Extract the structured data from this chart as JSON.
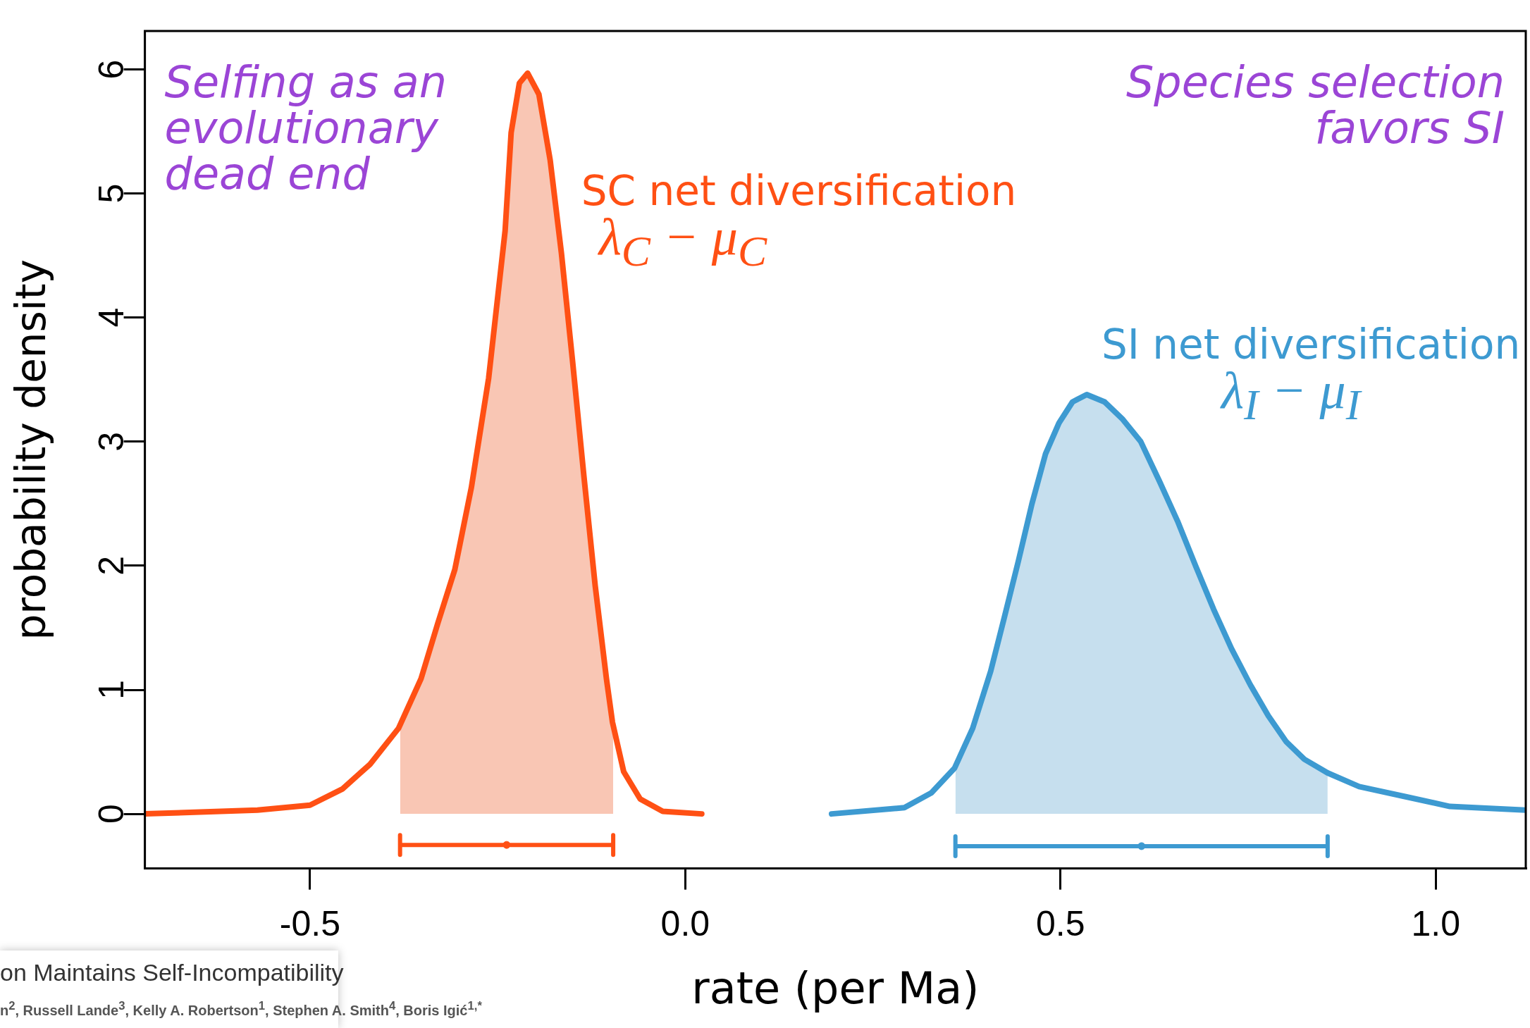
{
  "chart_data": {
    "type": "line",
    "xlabel": "rate (per Ma)",
    "ylabel": "probability density",
    "xlim": [
      -0.72,
      1.12
    ],
    "xticks": [
      -0.5,
      {
        "value": 0,
        "label": "0.0"
      },
      0.5,
      {
        "value": 1,
        "label": "1.0"
      }
    ],
    "ylim": [
      -0.44,
      6.31
    ],
    "yticks": [
      0,
      1,
      2,
      3,
      4,
      5,
      6
    ],
    "grid": false,
    "legend": false,
    "marker": "none",
    "series": [
      {
        "type": "area",
        "color": "#f9c6b4",
        "x": [
          -0.38,
          -0.352,
          -0.33,
          -0.307,
          -0.285,
          -0.262,
          -0.24,
          -0.232,
          -0.221,
          -0.21,
          -0.195,
          -0.18,
          -0.165,
          -0.15,
          -0.135,
          -0.12,
          -0.105,
          -0.096
        ],
        "values": [
          0.7,
          1.09,
          1.53,
          1.97,
          2.63,
          3.51,
          4.7,
          5.49,
          5.89,
          5.97,
          5.8,
          5.27,
          4.52,
          3.64,
          2.72,
          1.84,
          1.09,
          0.72
        ]
      },
      {
        "type": "area",
        "color": "#c6dfee",
        "x": [
          0.36,
          0.383,
          0.407,
          0.425,
          0.444,
          0.462,
          0.48,
          0.498,
          0.516,
          0.535,
          0.559,
          0.583,
          0.607,
          0.632,
          0.656,
          0.68,
          0.704,
          0.728,
          0.753,
          0.777,
          0.801,
          0.825,
          0.856
        ],
        "values": [
          0.38,
          0.69,
          1.15,
          1.58,
          2.04,
          2.5,
          2.9,
          3.15,
          3.32,
          3.38,
          3.32,
          3.18,
          3.0,
          2.68,
          2.36,
          2.0,
          1.65,
          1.33,
          1.04,
          0.79,
          0.58,
          0.44,
          0.33
        ]
      },
      {
        "name": "SC net diversification",
        "color": "#ff5014",
        "x": [
          -0.72,
          -0.57,
          -0.5,
          -0.457,
          -0.42,
          -0.382,
          -0.352,
          -0.33,
          -0.307,
          -0.285,
          -0.262,
          -0.24,
          -0.232,
          -0.221,
          -0.21,
          -0.195,
          -0.18,
          -0.165,
          -0.15,
          -0.135,
          -0.12,
          -0.105,
          -0.097,
          -0.082,
          -0.06,
          -0.03,
          0.022
        ],
        "values": [
          0,
          0.03,
          0.07,
          0.2,
          0.4,
          0.69,
          1.09,
          1.53,
          1.97,
          2.63,
          3.51,
          4.7,
          5.49,
          5.89,
          5.97,
          5.8,
          5.27,
          4.52,
          3.64,
          2.72,
          1.84,
          1.09,
          0.74,
          0.34,
          0.12,
          0.02,
          0
        ]
      },
      {
        "name": "SI net diversification",
        "color": "#3d9ad1",
        "x": [
          0.195,
          0.292,
          0.328,
          0.359,
          0.383,
          0.407,
          0.425,
          0.444,
          0.462,
          0.48,
          0.498,
          0.516,
          0.535,
          0.559,
          0.583,
          0.607,
          0.632,
          0.656,
          0.68,
          0.704,
          0.728,
          0.753,
          0.777,
          0.801,
          0.825,
          0.856,
          0.898,
          0.959,
          1.019,
          1.12
        ],
        "values": [
          0,
          0.05,
          0.17,
          0.37,
          0.69,
          1.15,
          1.58,
          2.04,
          2.5,
          2.9,
          3.15,
          3.32,
          3.38,
          3.32,
          3.18,
          3.0,
          2.68,
          2.36,
          2.0,
          1.65,
          1.33,
          1.04,
          0.79,
          0.58,
          0.44,
          0.33,
          0.22,
          0.14,
          0.06,
          0.03
        ]
      },
      {
        "type": "scatter",
        "marker": "circle",
        "color": "#ff5014",
        "x": [
          -0.238
        ],
        "values": [
          -0.25
        ],
        "xerrors": [
          [
            -0.38,
            -0.096
          ]
        ]
      },
      {
        "type": "scatter",
        "marker": "circle",
        "color": "#3d9ad1",
        "x": [
          0.608
        ],
        "values": [
          -0.26
        ],
        "xerrors": [
          [
            0.36,
            0.856
          ]
        ]
      }
    ],
    "annotations": [
      "Selfing as an evolutionary dead end",
      "Species selection favors SI",
      "λ$_{C}$ − μ$_{C}$",
      "λ$_{I}$ − μ$_{I}$",
      "on Maintains Self-Incompatibility",
      "n$^{2}$, Russell Lande$^{3}$, Kelly A. Robertson$^{1}$, Stephen A. Smith$^{4}$, Boris Igić$^{1,*}$"
    ]
  }
}
